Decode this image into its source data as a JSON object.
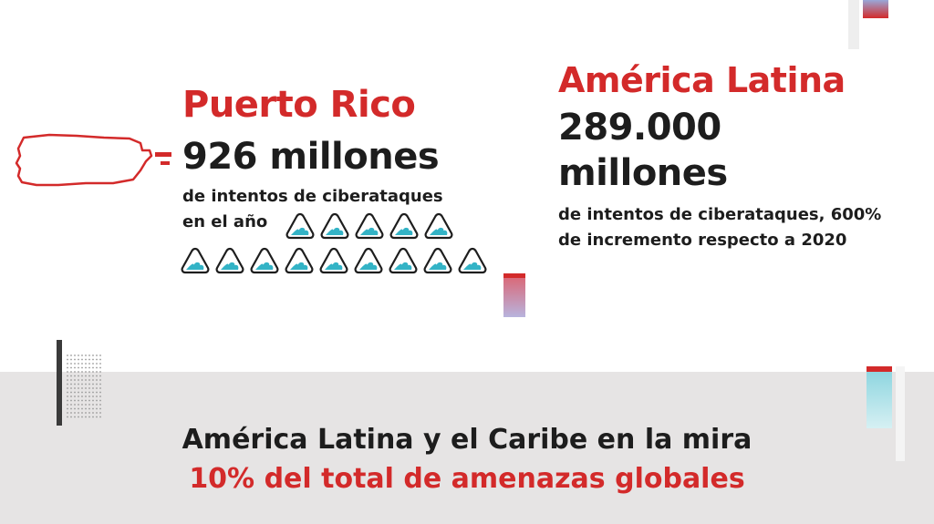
{
  "puerto_rico": {
    "title": "Puerto Rico",
    "value": "926 millones",
    "desc_line1": "de intentos de ciberataques",
    "desc_line2": "en el año",
    "wave_icon_count": 14
  },
  "latin_america": {
    "title": "América Latina",
    "value": "289.000 millones",
    "desc": "de intentos de ciberataques, 600% de incremento respecto a 2020"
  },
  "footer": {
    "title": "América Latina y el Caribe en la mira",
    "subtitle": "10% del total de amenazas globales"
  },
  "colors": {
    "accent_red": "#d32a2a",
    "text_dark": "#1d1d1d",
    "wave_teal": "#33b3c6",
    "band_gray": "#e6e4e4"
  }
}
